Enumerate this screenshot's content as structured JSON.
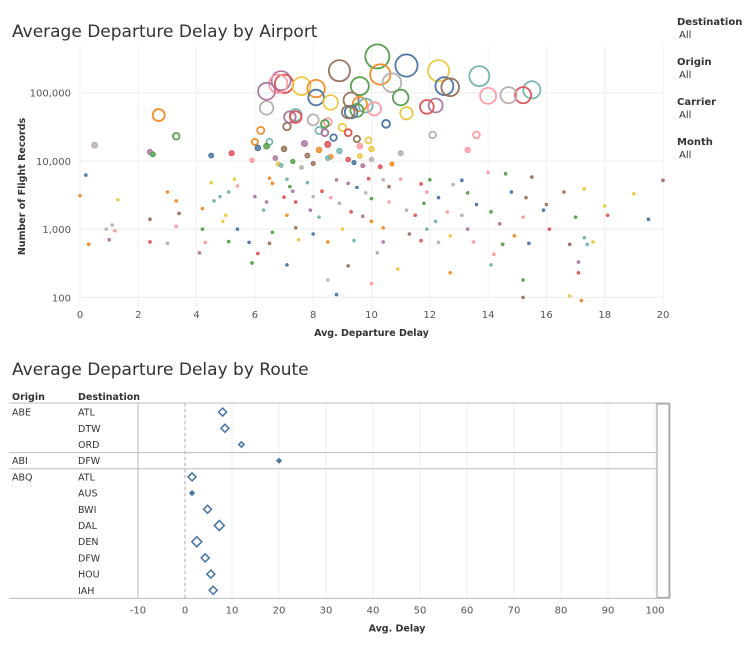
{
  "filters": [
    {
      "label": "Destination",
      "value": "All"
    },
    {
      "label": "Origin",
      "value": "All"
    },
    {
      "label": "Carrier",
      "value": "All"
    },
    {
      "label": "Month",
      "value": "All"
    }
  ],
  "chart_data": [
    {
      "type": "scatter",
      "title": "Average Departure Delay by Airport",
      "xlabel": "Avg. Departure Delay",
      "ylabel": "Number of Flight Records",
      "xlim": [
        0,
        20
      ],
      "ylim": [
        70,
        500000
      ],
      "y_scale": "log",
      "x_ticks": [
        "0",
        "2",
        "4",
        "6",
        "8",
        "10",
        "12",
        "14",
        "16",
        "18",
        "20"
      ],
      "y_ticks": [
        "100",
        "1,000",
        "10,000",
        "100,000"
      ],
      "grid": true,
      "marker": "open circle, size by number of records",
      "colors": [
        "#4e79a7",
        "#f28e2b",
        "#e15759",
        "#59a14f",
        "#edc948",
        "#b07aa1",
        "#ff9da7",
        "#9c755f",
        "#76b7b2",
        "#bab0ac"
      ],
      "points": [
        {
          "x": 10.2,
          "y": 340000
        },
        {
          "x": 11.2,
          "y": 250000
        },
        {
          "x": 8.9,
          "y": 210000
        },
        {
          "x": 12.3,
          "y": 210000
        },
        {
          "x": 10.3,
          "y": 185000
        },
        {
          "x": 13.7,
          "y": 175000
        },
        {
          "x": 6.9,
          "y": 150000
        },
        {
          "x": 7.0,
          "y": 135000
        },
        {
          "x": 10.7,
          "y": 140000
        },
        {
          "x": 6.8,
          "y": 135000
        },
        {
          "x": 9.6,
          "y": 125000
        },
        {
          "x": 12.5,
          "y": 125000
        },
        {
          "x": 12.7,
          "y": 120000
        },
        {
          "x": 7.6,
          "y": 125000
        },
        {
          "x": 8.1,
          "y": 115000
        },
        {
          "x": 15.5,
          "y": 110000
        },
        {
          "x": 6.4,
          "y": 105000
        },
        {
          "x": 15.2,
          "y": 92000
        },
        {
          "x": 14.7,
          "y": 92000
        },
        {
          "x": 14.0,
          "y": 90000
        },
        {
          "x": 11.0,
          "y": 85000
        },
        {
          "x": 8.1,
          "y": 85000
        },
        {
          "x": 9.3,
          "y": 78000
        },
        {
          "x": 8.6,
          "y": 72000
        },
        {
          "x": 9.6,
          "y": 68000
        },
        {
          "x": 9.8,
          "y": 65000
        },
        {
          "x": 12.2,
          "y": 65000
        },
        {
          "x": 11.9,
          "y": 62000
        },
        {
          "x": 6.4,
          "y": 60000
        },
        {
          "x": 10.1,
          "y": 58000
        },
        {
          "x": 9.5,
          "y": 55000
        },
        {
          "x": 9.3,
          "y": 52000
        },
        {
          "x": 9.2,
          "y": 52000
        },
        {
          "x": 11.2,
          "y": 50000
        },
        {
          "x": 2.7,
          "y": 47000
        },
        {
          "x": 7.4,
          "y": 47000
        },
        {
          "x": 7.2,
          "y": 44000
        },
        {
          "x": 7.4,
          "y": 44000
        },
        {
          "x": 8.0,
          "y": 40000
        },
        {
          "x": 8.5,
          "y": 37000
        },
        {
          "x": 8.4,
          "y": 35000
        },
        {
          "x": 10.5,
          "y": 35000
        },
        {
          "x": 7.1,
          "y": 32000
        },
        {
          "x": 9.0,
          "y": 31000
        },
        {
          "x": 6.2,
          "y": 28000
        },
        {
          "x": 8.2,
          "y": 28000
        },
        {
          "x": 8.4,
          "y": 26000
        },
        {
          "x": 9.2,
          "y": 26000
        },
        {
          "x": 12.1,
          "y": 24000
        },
        {
          "x": 13.6,
          "y": 24000
        },
        {
          "x": 3.3,
          "y": 23000
        },
        {
          "x": 8.7,
          "y": 22000
        },
        {
          "x": 9.5,
          "y": 21000
        },
        {
          "x": 9.9,
          "y": 20000
        },
        {
          "x": 6.0,
          "y": 19000
        },
        {
          "x": 6.5,
          "y": 19000
        },
        {
          "x": 7.7,
          "y": 18000
        },
        {
          "x": 8.5,
          "y": 17500
        },
        {
          "x": 0.5,
          "y": 17000
        },
        {
          "x": 9.6,
          "y": 16500
        },
        {
          "x": 6.4,
          "y": 16500
        },
        {
          "x": 6.1,
          "y": 15500
        },
        {
          "x": 7.0,
          "y": 15000
        },
        {
          "x": 10.0,
          "y": 15000
        },
        {
          "x": 8.2,
          "y": 14500
        },
        {
          "x": 8.9,
          "y": 14000
        },
        {
          "x": 2.4,
          "y": 13500
        },
        {
          "x": 5.2,
          "y": 13000
        },
        {
          "x": 11.0,
          "y": 13000
        },
        {
          "x": 13.3,
          "y": 14500
        },
        {
          "x": 2.5,
          "y": 12500
        },
        {
          "x": 4.5,
          "y": 12000
        },
        {
          "x": 7.8,
          "y": 12000
        },
        {
          "x": 9.6,
          "y": 11800
        },
        {
          "x": 8.6,
          "y": 11500
        },
        {
          "x": 8.5,
          "y": 11000
        },
        {
          "x": 6.7,
          "y": 11000
        },
        {
          "x": 9.2,
          "y": 10500
        },
        {
          "x": 10.0,
          "y": 10500
        },
        {
          "x": 5.9,
          "y": 10200
        },
        {
          "x": 7.3,
          "y": 9800
        },
        {
          "x": 9.4,
          "y": 9500
        },
        {
          "x": 8.0,
          "y": 9200
        },
        {
          "x": 6.8,
          "y": 9000
        },
        {
          "x": 10.7,
          "y": 9000
        },
        {
          "x": 6.9,
          "y": 8600
        },
        {
          "x": 9.7,
          "y": 8500
        },
        {
          "x": 10.3,
          "y": 8200
        },
        {
          "x": 7.6,
          "y": 8000
        },
        {
          "x": 14.0,
          "y": 6800
        },
        {
          "x": 14.6,
          "y": 6500
        },
        {
          "x": 0.2,
          "y": 6200
        },
        {
          "x": 15.5,
          "y": 5800
        },
        {
          "x": 5.3,
          "y": 5400
        },
        {
          "x": 6.5,
          "y": 5600
        },
        {
          "x": 7.1,
          "y": 5400
        },
        {
          "x": 8.8,
          "y": 5300
        },
        {
          "x": 9.9,
          "y": 5500
        },
        {
          "x": 10.4,
          "y": 5300
        },
        {
          "x": 11.0,
          "y": 5400
        },
        {
          "x": 12.0,
          "y": 5300
        },
        {
          "x": 13.1,
          "y": 5200
        },
        {
          "x": 20.0,
          "y": 5200
        },
        {
          "x": 4.5,
          "y": 4800
        },
        {
          "x": 6.6,
          "y": 4700
        },
        {
          "x": 7.8,
          "y": 4800
        },
        {
          "x": 9.2,
          "y": 4700
        },
        {
          "x": 11.7,
          "y": 4600
        },
        {
          "x": 12.8,
          "y": 4500
        },
        {
          "x": 5.4,
          "y": 4300
        },
        {
          "x": 7.2,
          "y": 4200
        },
        {
          "x": 9.5,
          "y": 4100
        },
        {
          "x": 10.6,
          "y": 4200
        },
        {
          "x": 17.3,
          "y": 3900
        },
        {
          "x": 3.0,
          "y": 3500
        },
        {
          "x": 5.1,
          "y": 3500
        },
        {
          "x": 7.3,
          "y": 3600
        },
        {
          "x": 8.3,
          "y": 3600
        },
        {
          "x": 9.8,
          "y": 3400
        },
        {
          "x": 11.9,
          "y": 3500
        },
        {
          "x": 13.3,
          "y": 3400
        },
        {
          "x": 14.8,
          "y": 3500
        },
        {
          "x": 16.6,
          "y": 3500
        },
        {
          "x": 19.0,
          "y": 3300
        },
        {
          "x": 0.0,
          "y": 3100
        },
        {
          "x": 4.8,
          "y": 3000
        },
        {
          "x": 6.0,
          "y": 3000
        },
        {
          "x": 7.0,
          "y": 2950
        },
        {
          "x": 8.0,
          "y": 3000
        },
        {
          "x": 8.6,
          "y": 2900
        },
        {
          "x": 10.0,
          "y": 2800
        },
        {
          "x": 12.3,
          "y": 2900
        },
        {
          "x": 15.3,
          "y": 2900
        },
        {
          "x": 1.3,
          "y": 2700
        },
        {
          "x": 3.3,
          "y": 2600
        },
        {
          "x": 4.6,
          "y": 2600
        },
        {
          "x": 6.4,
          "y": 2500
        },
        {
          "x": 7.4,
          "y": 2500
        },
        {
          "x": 8.9,
          "y": 2400
        },
        {
          "x": 10.6,
          "y": 2500
        },
        {
          "x": 11.8,
          "y": 2400
        },
        {
          "x": 13.6,
          "y": 2300
        },
        {
          "x": 16.0,
          "y": 2300
        },
        {
          "x": 18.0,
          "y": 2200
        },
        {
          "x": 4.2,
          "y": 2000
        },
        {
          "x": 6.3,
          "y": 1900
        },
        {
          "x": 7.9,
          "y": 1900
        },
        {
          "x": 9.3,
          "y": 1800
        },
        {
          "x": 11.2,
          "y": 1900
        },
        {
          "x": 12.6,
          "y": 1800
        },
        {
          "x": 14.1,
          "y": 1800
        },
        {
          "x": 15.9,
          "y": 1900
        },
        {
          "x": 3.4,
          "y": 1700
        },
        {
          "x": 5.0,
          "y": 1600
        },
        {
          "x": 7.1,
          "y": 1600
        },
        {
          "x": 8.2,
          "y": 1500
        },
        {
          "x": 9.7,
          "y": 1550
        },
        {
          "x": 11.5,
          "y": 1600
        },
        {
          "x": 13.1,
          "y": 1600
        },
        {
          "x": 15.2,
          "y": 1500
        },
        {
          "x": 17.0,
          "y": 1500
        },
        {
          "x": 19.5,
          "y": 1400
        },
        {
          "x": 2.4,
          "y": 1400
        },
        {
          "x": 4.9,
          "y": 1300
        },
        {
          "x": 10.0,
          "y": 1300
        },
        {
          "x": 12.2,
          "y": 1300
        },
        {
          "x": 14.4,
          "y": 1200
        },
        {
          "x": 18.1,
          "y": 1600
        },
        {
          "x": 1.1,
          "y": 1150
        },
        {
          "x": 3.3,
          "y": 1100
        },
        {
          "x": 4.2,
          "y": 1000
        },
        {
          "x": 5.4,
          "y": 1000
        },
        {
          "x": 7.4,
          "y": 1050
        },
        {
          "x": 9.0,
          "y": 1000
        },
        {
          "x": 10.4,
          "y": 1050
        },
        {
          "x": 11.9,
          "y": 1000
        },
        {
          "x": 13.3,
          "y": 1000
        },
        {
          "x": 16.1,
          "y": 1000
        },
        {
          "x": 0.9,
          "y": 1000
        },
        {
          "x": 1.2,
          "y": 950
        },
        {
          "x": 6.6,
          "y": 900
        },
        {
          "x": 8.0,
          "y": 850
        },
        {
          "x": 11.3,
          "y": 850
        },
        {
          "x": 12.7,
          "y": 800
        },
        {
          "x": 14.9,
          "y": 800
        },
        {
          "x": 17.3,
          "y": 750
        },
        {
          "x": 1.0,
          "y": 700
        },
        {
          "x": 2.4,
          "y": 650
        },
        {
          "x": 3.0,
          "y": 620
        },
        {
          "x": 4.3,
          "y": 640
        },
        {
          "x": 5.1,
          "y": 660
        },
        {
          "x": 5.8,
          "y": 640
        },
        {
          "x": 6.5,
          "y": 620
        },
        {
          "x": 7.5,
          "y": 700
        },
        {
          "x": 8.5,
          "y": 650
        },
        {
          "x": 9.4,
          "y": 680
        },
        {
          "x": 10.4,
          "y": 650
        },
        {
          "x": 11.7,
          "y": 680
        },
        {
          "x": 12.3,
          "y": 640
        },
        {
          "x": 13.5,
          "y": 650
        },
        {
          "x": 14.5,
          "y": 600
        },
        {
          "x": 15.4,
          "y": 620
        },
        {
          "x": 16.8,
          "y": 600
        },
        {
          "x": 17.6,
          "y": 650
        },
        {
          "x": 0.3,
          "y": 600
        },
        {
          "x": 17.4,
          "y": 600
        },
        {
          "x": 4.1,
          "y": 450
        },
        {
          "x": 6.1,
          "y": 440
        },
        {
          "x": 10.2,
          "y": 450
        },
        {
          "x": 14.2,
          "y": 430
        },
        {
          "x": 5.9,
          "y": 320
        },
        {
          "x": 7.1,
          "y": 300
        },
        {
          "x": 9.2,
          "y": 290
        },
        {
          "x": 10.9,
          "y": 260
        },
        {
          "x": 12.7,
          "y": 230
        },
        {
          "x": 14.1,
          "y": 300
        },
        {
          "x": 17.1,
          "y": 330
        },
        {
          "x": 17.1,
          "y": 230
        },
        {
          "x": 8.5,
          "y": 180
        },
        {
          "x": 10.0,
          "y": 160
        },
        {
          "x": 15.2,
          "y": 180
        },
        {
          "x": 8.8,
          "y": 110
        },
        {
          "x": 15.2,
          "y": 100
        },
        {
          "x": 16.8,
          "y": 105
        },
        {
          "x": 17.2,
          "y": 90
        }
      ]
    },
    {
      "type": "scatter",
      "title": "Average Departure Delay by Route",
      "xlabel": "Avg. Delay",
      "xlim": [
        -15,
        105
      ],
      "x_ticks": [
        "-10",
        "0",
        "10",
        "20",
        "30",
        "40",
        "50",
        "60",
        "70",
        "80",
        "90",
        "100"
      ],
      "marker": "diamond",
      "columns": [
        "Origin",
        "Destination"
      ],
      "rows": [
        {
          "origin": "ABE",
          "destination": "ATL",
          "value": 8
        },
        {
          "origin": "",
          "destination": "DTW",
          "value": 8.5
        },
        {
          "origin": "",
          "destination": "ORD",
          "value": 12
        },
        {
          "origin": "ABI",
          "destination": "DFW",
          "value": 20
        },
        {
          "origin": "ABQ",
          "destination": "ATL",
          "value": 1.5
        },
        {
          "origin": "",
          "destination": "AUS",
          "value": 1.5
        },
        {
          "origin": "",
          "destination": "BWI",
          "value": 4.8
        },
        {
          "origin": "",
          "destination": "DAL",
          "value": 7.3
        },
        {
          "origin": "",
          "destination": "DEN",
          "value": 2.5
        },
        {
          "origin": "",
          "destination": "DFW",
          "value": 4.3
        },
        {
          "origin": "",
          "destination": "HOU",
          "value": 5.5
        },
        {
          "origin": "",
          "destination": "IAH",
          "value": 6
        }
      ]
    }
  ]
}
